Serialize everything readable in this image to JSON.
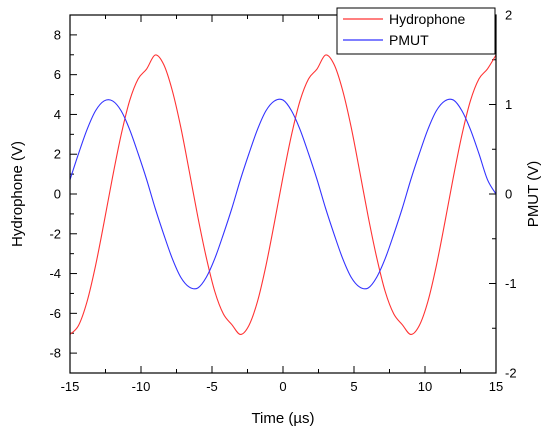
{
  "chart_data": {
    "type": "line",
    "title": "",
    "xlabel": "Time (µs)",
    "ylabel_left": "Hydrophone (V)",
    "ylabel_right": "PMUT (V)",
    "xlim": [
      -15,
      15
    ],
    "ylim_left": [
      -9,
      9
    ],
    "ylim_right": [
      -2,
      2
    ],
    "xticks": [
      -15,
      -10,
      -5,
      0,
      5,
      10,
      15
    ],
    "yticks_left": [
      -8,
      -6,
      -4,
      -2,
      0,
      2,
      4,
      6,
      8
    ],
    "yticks_right": [
      -2,
      -1,
      0,
      1,
      2
    ],
    "grid": false,
    "legend_position": "top-right",
    "series": [
      {
        "name": "Hydrophone",
        "axis": "left",
        "color": "#ff3333",
        "x": [
          -15,
          -14.4,
          -13.8,
          -13.2,
          -12.6,
          -12,
          -11.4,
          -10.8,
          -10.2,
          -9.6,
          -9,
          -8.4,
          -7.8,
          -7.2,
          -6.6,
          -6,
          -5.4,
          -4.8,
          -4.2,
          -3.6,
          -3,
          -2.4,
          -1.8,
          -1.2,
          -0.6,
          0,
          0.6,
          1.2,
          1.8,
          2.4,
          3,
          3.6,
          4.2,
          4.8,
          5.4,
          6,
          6.6,
          7.2,
          7.8,
          8.4,
          9,
          9.6,
          10.2,
          10.8,
          11.4,
          12,
          12.6,
          13.2,
          13.8,
          14.4,
          15
        ],
        "y": [
          -7.06,
          -6.61,
          -5.41,
          -3.6,
          -1.42,
          0.86,
          2.97,
          4.69,
          5.79,
          6.29,
          6.99,
          6.51,
          5.21,
          3.36,
          1.14,
          -1.14,
          -3.2,
          -4.91,
          -6.03,
          -6.57,
          -7.06,
          -6.61,
          -5.41,
          -3.6,
          -1.42,
          0.86,
          2.97,
          4.69,
          5.79,
          6.29,
          6.99,
          6.51,
          5.21,
          3.36,
          1.14,
          -1.14,
          -3.2,
          -4.91,
          -6.03,
          -6.57,
          -7.06,
          -6.61,
          -5.41,
          -3.6,
          -1.42,
          0.86,
          2.97,
          4.69,
          5.79,
          6.29,
          6.99
        ]
      },
      {
        "name": "PMUT",
        "axis": "right",
        "color": "#3333ff",
        "x": [
          -15,
          -14.4,
          -13.8,
          -13.2,
          -12.6,
          -12,
          -11.4,
          -10.8,
          -10.2,
          -9.6,
          -9,
          -8.4,
          -7.8,
          -7.2,
          -6.6,
          -6,
          -5.4,
          -4.8,
          -4.2,
          -3.6,
          -3,
          -2.4,
          -1.8,
          -1.2,
          -0.6,
          0,
          0.6,
          1.2,
          1.8,
          2.4,
          3,
          3.6,
          4.2,
          4.8,
          5.4,
          6,
          6.6,
          7.2,
          7.8,
          8.4,
          9,
          9.6,
          10.2,
          10.8,
          11.4,
          12,
          12.6,
          13.2,
          13.8,
          14.4,
          15
        ],
        "y": [
          0.16,
          0.45,
          0.72,
          0.93,
          1.04,
          1.04,
          0.93,
          0.72,
          0.45,
          0.16,
          -0.16,
          -0.45,
          -0.72,
          -0.93,
          -1.04,
          -1.05,
          -0.93,
          -0.72,
          -0.45,
          -0.16,
          0.16,
          0.45,
          0.72,
          0.93,
          1.04,
          1.05,
          0.93,
          0.72,
          0.45,
          0.16,
          -0.16,
          -0.45,
          -0.72,
          -0.93,
          -1.04,
          -1.05,
          -0.93,
          -0.72,
          -0.45,
          -0.16,
          0.16,
          0.45,
          0.72,
          0.93,
          1.04,
          1.05,
          0.93,
          0.72,
          0.45,
          0.16,
          0.0
        ]
      }
    ]
  }
}
